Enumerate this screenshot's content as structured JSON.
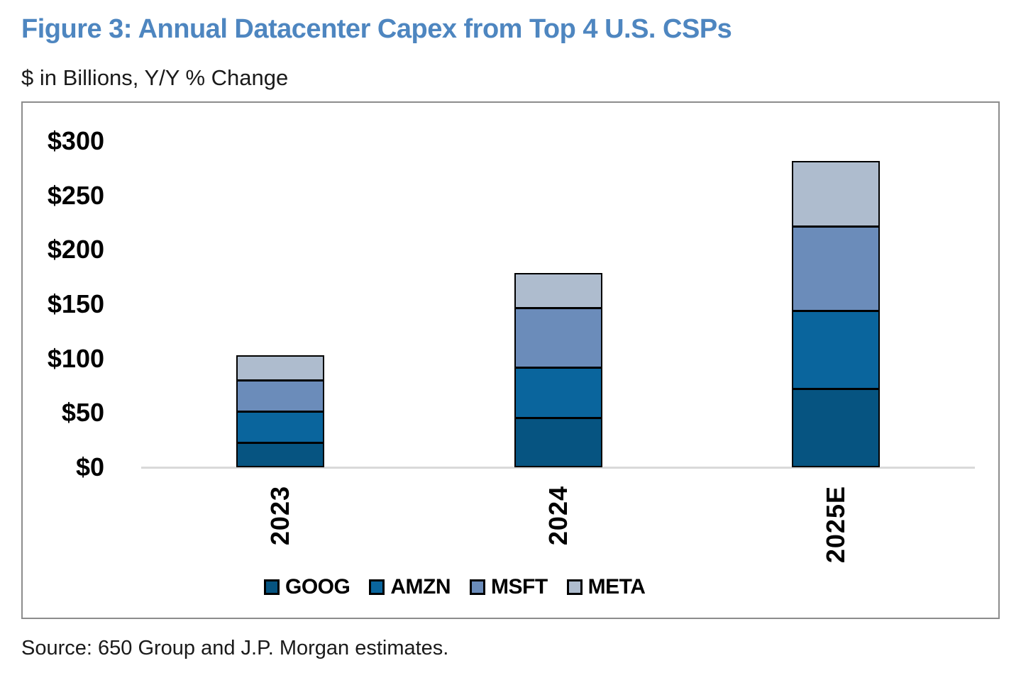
{
  "header": {
    "title": "Figure 3: Annual Datacenter Capex from Top 4 U.S. CSPs",
    "subtitle": "$ in Billions, Y/Y % Change"
  },
  "source": {
    "text": "Source: 650 Group and J.P. Morgan estimates."
  },
  "colors": {
    "title_accent": "#4E86C0",
    "axis_line": "#D9D9D9",
    "chart_border": "#8C8C8C",
    "bar_border": "#000000",
    "goog": "#065481",
    "amzn": "#0A659D",
    "msft": "#6B8CBA",
    "meta": "#AEBCCE"
  },
  "chart_data": {
    "type": "bar",
    "stacked": true,
    "title": "Figure 3: Annual Datacenter Capex from Top 4 U.S. CSPs",
    "subtitle": "$ in Billions, Y/Y % Change",
    "units": "$ in Billions",
    "categories": [
      "2023",
      "2024",
      "2025E"
    ],
    "series": [
      {
        "name": "GOOG",
        "color": "#065481",
        "values": [
          22,
          45,
          72
        ]
      },
      {
        "name": "AMZN",
        "color": "#0A659D",
        "values": [
          29,
          47,
          72
        ]
      },
      {
        "name": "MSFT",
        "color": "#6B8CBA",
        "values": [
          29,
          55,
          78
        ]
      },
      {
        "name": "META",
        "color": "#AEBCCE",
        "values": [
          23,
          32,
          60
        ]
      }
    ],
    "y_ticks": [
      {
        "value": 300,
        "label": "$300"
      },
      {
        "value": 250,
        "label": "$250"
      },
      {
        "value": 200,
        "label": "$200"
      },
      {
        "value": 150,
        "label": "$150"
      },
      {
        "value": 100,
        "label": "$100"
      },
      {
        "value": 50,
        "label": "$50"
      },
      {
        "value": 0,
        "label": "$0"
      }
    ],
    "ylim": [
      0,
      300
    ],
    "xlabel": "",
    "ylabel": "",
    "grid": false,
    "legend_position": "bottom",
    "legend": [
      "GOOG",
      "AMZN",
      "MSFT",
      "META"
    ]
  }
}
